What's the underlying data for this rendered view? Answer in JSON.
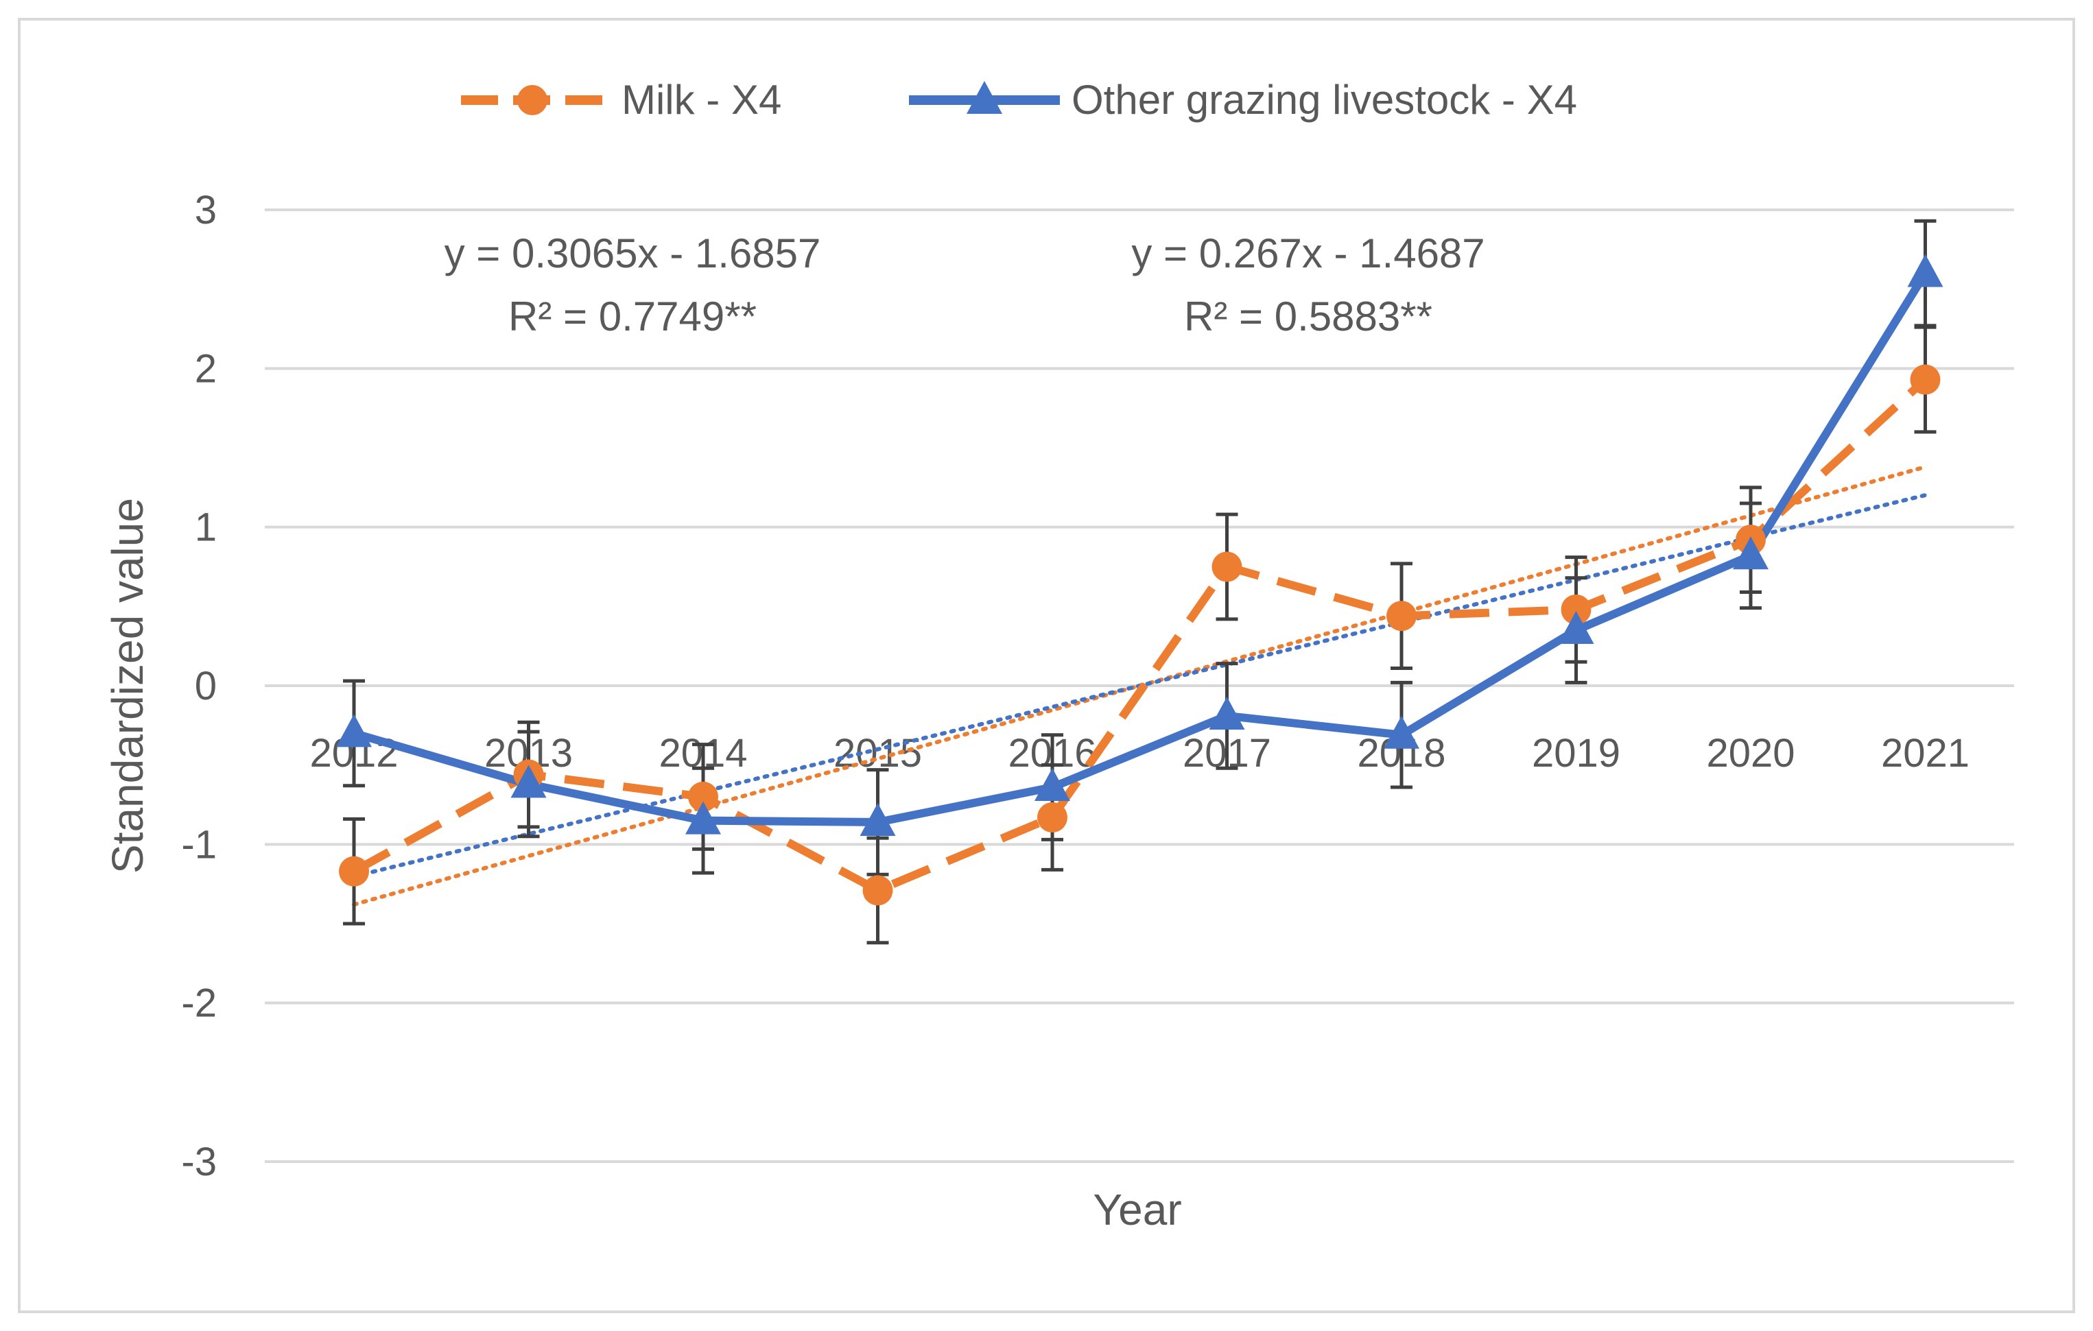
{
  "chart_data": {
    "type": "line",
    "title": "",
    "xlabel": "Year",
    "ylabel": "Standardized value",
    "ylim": [
      -3,
      3
    ],
    "yticks": [
      3,
      2,
      1,
      0,
      -1,
      -2,
      -3
    ],
    "categories": [
      "2012",
      "2013",
      "2014",
      "2015",
      "2016",
      "2017",
      "2018",
      "2019",
      "2020",
      "2021"
    ],
    "legend_position": "top-center",
    "series": [
      {
        "name": "Milk -  X4",
        "color": "#ed7d31",
        "marker": "circle",
        "line_style": "dashed",
        "values": [
          -1.17,
          -0.56,
          -0.7,
          -1.29,
          -0.83,
          0.75,
          0.44,
          0.48,
          0.92,
          1.93
        ],
        "error": [
          0.33,
          0.33,
          0.33,
          0.33,
          0.33,
          0.33,
          0.33,
          0.33,
          0.33,
          0.33
        ],
        "trendline": {
          "slope": 0.3065,
          "intercept": -1.6857,
          "equation": "y = 0.3065x - 1.6857",
          "r2": "R² = 0.7749**"
        }
      },
      {
        "name": "Other grazing livestock -  X4",
        "color": "#4472c4",
        "marker": "triangle",
        "line_style": "solid",
        "values": [
          -0.3,
          -0.62,
          -0.85,
          -0.86,
          -0.64,
          -0.19,
          -0.31,
          0.35,
          0.82,
          2.6
        ],
        "error": [
          0.33,
          0.33,
          0.33,
          0.33,
          0.33,
          0.33,
          0.33,
          0.33,
          0.33,
          0.33
        ],
        "trendline": {
          "slope": 0.267,
          "intercept": -1.4687,
          "equation": "y = 0.267x - 1.4687",
          "r2": "R² = 0.5883**"
        }
      }
    ]
  }
}
